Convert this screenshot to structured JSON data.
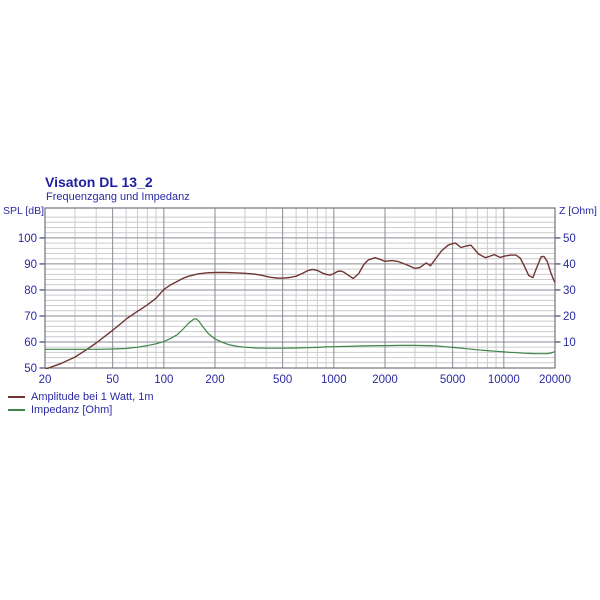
{
  "page": {
    "background": "#ffffff"
  },
  "colors": {
    "title_navy": "#1e1e9e",
    "text_navy": "#2a2aa4"
  },
  "chart_data": {
    "type": "line",
    "title": "Visaton DL 13_2",
    "subtitle": "Frequenzgang und Impedanz",
    "legend_position": "bottom-left",
    "x_axis": {
      "scale": "log",
      "unit": "Hz",
      "min": 20,
      "max": 20000,
      "major_ticks": [
        20,
        50,
        100,
        200,
        500,
        1000,
        2000,
        5000,
        10000,
        20000
      ],
      "major_tick_labels": [
        "20",
        "50",
        "100",
        "200",
        "500",
        "1000",
        "2000",
        "5000",
        "10000",
        "20000"
      ],
      "minor_ticks": [
        30,
        40,
        60,
        70,
        80,
        90,
        300,
        400,
        600,
        700,
        800,
        900,
        3000,
        4000,
        6000,
        7000,
        8000,
        9000
      ]
    },
    "left_axis": {
      "label": "SPL [dB]",
      "min": 50,
      "max": 111.5,
      "ticks": [
        50,
        60,
        70,
        80,
        90,
        100
      ],
      "minor_step": 2
    },
    "right_axis": {
      "label": "Z [Ohm]",
      "min": 0,
      "max": 61.5,
      "ticks": [
        10,
        20,
        30,
        40,
        50
      ]
    },
    "grid": {
      "major_color": "#8a8a94",
      "minor_color": "#cccccf",
      "border_color": "#73737d",
      "tick_color": "#44446a"
    },
    "series": [
      {
        "name": "Amplitude bei 1 Watt, 1m",
        "axis": "left",
        "unit": "dB",
        "color": "#713531",
        "points": [
          [
            20,
            49.5
          ],
          [
            25,
            51.8
          ],
          [
            30,
            54.2
          ],
          [
            35,
            57.0
          ],
          [
            40,
            59.6
          ],
          [
            45,
            62.2
          ],
          [
            50,
            64.5
          ],
          [
            55,
            66.7
          ],
          [
            60,
            68.8
          ],
          [
            70,
            71.8
          ],
          [
            80,
            74.3
          ],
          [
            90,
            76.8
          ],
          [
            100,
            80.2
          ],
          [
            110,
            82.0
          ],
          [
            120,
            83.3
          ],
          [
            130,
            84.5
          ],
          [
            140,
            85.3
          ],
          [
            150,
            85.8
          ],
          [
            160,
            86.2
          ],
          [
            180,
            86.6
          ],
          [
            200,
            86.7
          ],
          [
            230,
            86.7
          ],
          [
            260,
            86.6
          ],
          [
            300,
            86.4
          ],
          [
            340,
            86.1
          ],
          [
            380,
            85.6
          ],
          [
            420,
            84.9
          ],
          [
            460,
            84.6
          ],
          [
            500,
            84.5
          ],
          [
            550,
            84.8
          ],
          [
            600,
            85.3
          ],
          [
            650,
            86.3
          ],
          [
            700,
            87.4
          ],
          [
            750,
            87.9
          ],
          [
            800,
            87.5
          ],
          [
            850,
            86.6
          ],
          [
            900,
            86.0
          ],
          [
            950,
            85.7
          ],
          [
            1000,
            86.3
          ],
          [
            1050,
            87.1
          ],
          [
            1100,
            87.3
          ],
          [
            1150,
            86.8
          ],
          [
            1200,
            85.9
          ],
          [
            1300,
            84.4
          ],
          [
            1400,
            86.3
          ],
          [
            1500,
            89.8
          ],
          [
            1600,
            91.6
          ],
          [
            1750,
            92.4
          ],
          [
            1900,
            91.6
          ],
          [
            2000,
            91.0
          ],
          [
            2200,
            91.3
          ],
          [
            2400,
            90.9
          ],
          [
            2700,
            89.6
          ],
          [
            3000,
            88.3
          ],
          [
            3200,
            88.6
          ],
          [
            3500,
            90.4
          ],
          [
            3700,
            89.3
          ],
          [
            4000,
            92.3
          ],
          [
            4300,
            95.0
          ],
          [
            4700,
            97.2
          ],
          [
            5000,
            97.8
          ],
          [
            5200,
            98.0
          ],
          [
            5600,
            96.3
          ],
          [
            6000,
            96.9
          ],
          [
            6400,
            97.2
          ],
          [
            7100,
            93.8
          ],
          [
            7800,
            92.4
          ],
          [
            8300,
            93.0
          ],
          [
            8800,
            93.6
          ],
          [
            9500,
            92.5
          ],
          [
            10200,
            93.1
          ],
          [
            11000,
            93.4
          ],
          [
            11800,
            93.4
          ],
          [
            12500,
            92.2
          ],
          [
            13200,
            89.2
          ],
          [
            14000,
            85.6
          ],
          [
            14800,
            84.7
          ],
          [
            15600,
            88.6
          ],
          [
            16600,
            92.8
          ],
          [
            17200,
            92.9
          ],
          [
            18000,
            91.0
          ],
          [
            19000,
            86.2
          ],
          [
            19600,
            84.0
          ],
          [
            20000,
            82.8
          ]
        ]
      },
      {
        "name": "Impedanz [Ohm]",
        "axis": "right",
        "unit": "Ohm",
        "color": "#3f8548",
        "points": [
          [
            20,
            7.2
          ],
          [
            30,
            7.2
          ],
          [
            40,
            7.2
          ],
          [
            50,
            7.3
          ],
          [
            60,
            7.5
          ],
          [
            70,
            8.0
          ],
          [
            80,
            8.6
          ],
          [
            90,
            9.3
          ],
          [
            100,
            10.2
          ],
          [
            110,
            11.4
          ],
          [
            120,
            12.8
          ],
          [
            130,
            15.0
          ],
          [
            140,
            17.3
          ],
          [
            150,
            18.8
          ],
          [
            155,
            18.9
          ],
          [
            160,
            18.2
          ],
          [
            170,
            15.8
          ],
          [
            180,
            13.7
          ],
          [
            190,
            12.3
          ],
          [
            200,
            11.2
          ],
          [
            220,
            9.9
          ],
          [
            240,
            9.0
          ],
          [
            270,
            8.3
          ],
          [
            300,
            8.0
          ],
          [
            350,
            7.7
          ],
          [
            400,
            7.6
          ],
          [
            500,
            7.6
          ],
          [
            600,
            7.7
          ],
          [
            700,
            7.8
          ],
          [
            800,
            7.9
          ],
          [
            900,
            8.1
          ],
          [
            1000,
            8.2
          ],
          [
            1200,
            8.3
          ],
          [
            1500,
            8.5
          ],
          [
            2000,
            8.6
          ],
          [
            2500,
            8.7
          ],
          [
            3000,
            8.7
          ],
          [
            3500,
            8.6
          ],
          [
            4000,
            8.5
          ],
          [
            4500,
            8.2
          ],
          [
            5000,
            7.9
          ],
          [
            5500,
            7.7
          ],
          [
            6000,
            7.4
          ],
          [
            7000,
            7.0
          ],
          [
            8000,
            6.7
          ],
          [
            9000,
            6.4
          ],
          [
            10000,
            6.2
          ],
          [
            11000,
            6.0
          ],
          [
            12000,
            5.9
          ],
          [
            13000,
            5.7
          ],
          [
            14000,
            5.6
          ],
          [
            15000,
            5.5
          ],
          [
            16000,
            5.5
          ],
          [
            17000,
            5.5
          ],
          [
            18000,
            5.5
          ],
          [
            19000,
            5.8
          ],
          [
            20000,
            6.3
          ]
        ]
      }
    ]
  }
}
